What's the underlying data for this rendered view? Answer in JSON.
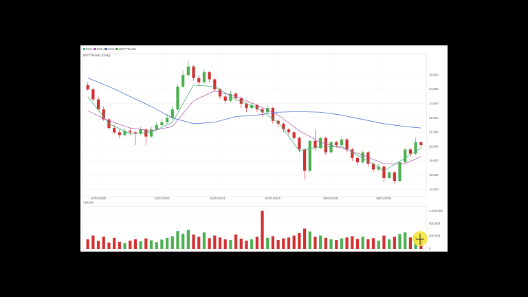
{
  "chart_data": {
    "type": "candlestick",
    "title": "NIFTYBANK (Daily)",
    "name": "NIFTYBANK",
    "up_color": "#4caf50",
    "down_color": "#d03030",
    "xlim": [
      -1,
      64
    ],
    "xticks": [
      {
        "value": 2,
        "label": "10/01/2020"
      },
      {
        "value": 14,
        "label": "12/01/2020"
      },
      {
        "value": 24.6,
        "label": "02/01/2021"
      },
      {
        "value": 35,
        "label": "04/01/2021"
      },
      {
        "value": 46,
        "label": "06/01/2021"
      },
      {
        "value": 56,
        "label": "08/01/2021"
      }
    ],
    "ylim": [
      16500,
      26500
    ],
    "yticks": [
      {
        "value": 17000,
        "label": "17,000"
      },
      {
        "value": 18000,
        "label": "18,000"
      },
      {
        "value": 19000,
        "label": "19,000"
      },
      {
        "value": 20000,
        "label": "20,000"
      },
      {
        "value": 21000,
        "label": "21,000"
      },
      {
        "value": 22000,
        "label": "22,000"
      },
      {
        "value": 23000,
        "label": "23,000"
      },
      {
        "value": 24000,
        "label": "24,000"
      },
      {
        "value": 25000,
        "label": "25,000"
      }
    ],
    "grid": true,
    "candles": [
      [
        24300,
        24500,
        23900,
        24000
      ],
      [
        24000,
        24100,
        23200,
        23300
      ],
      [
        23300,
        23500,
        22500,
        22600
      ],
      [
        22600,
        22800,
        21800,
        21900
      ],
      [
        21900,
        22000,
        21200,
        21300
      ],
      [
        21300,
        21500,
        20900,
        21000
      ],
      [
        21000,
        21200,
        20600,
        20800
      ],
      [
        20800,
        21300,
        20700,
        21100
      ],
      [
        21100,
        21300,
        20800,
        21000
      ],
      [
        21000,
        21100,
        20100,
        20900
      ],
      [
        20900,
        21400,
        20800,
        21200
      ],
      [
        21200,
        21300,
        20100,
        20700
      ],
      [
        20700,
        21400,
        20600,
        21200
      ],
      [
        21200,
        21700,
        21100,
        21500
      ],
      [
        21500,
        21900,
        21400,
        21700
      ],
      [
        21700,
        22300,
        21600,
        22000
      ],
      [
        22000,
        22800,
        21900,
        22600
      ],
      [
        22600,
        24400,
        22500,
        24200
      ],
      [
        24200,
        25300,
        24100,
        25000
      ],
      [
        25000,
        26000,
        24900,
        25600
      ],
      [
        25600,
        25700,
        24600,
        24800
      ],
      [
        24800,
        25000,
        24200,
        24500
      ],
      [
        24500,
        25400,
        24400,
        25200
      ],
      [
        25200,
        25300,
        24500,
        24700
      ],
      [
        24700,
        24800,
        23800,
        24000
      ],
      [
        24000,
        24100,
        23300,
        23500
      ],
      [
        23500,
        23700,
        23000,
        23200
      ],
      [
        23200,
        23900,
        23100,
        23700
      ],
      [
        23700,
        23800,
        23200,
        23400
      ],
      [
        23400,
        23500,
        22700,
        23000
      ],
      [
        23000,
        23100,
        22400,
        22700
      ],
      [
        22700,
        23100,
        22600,
        22900
      ],
      [
        22900,
        23000,
        22400,
        22600
      ],
      [
        22600,
        22700,
        22100,
        22400
      ],
      [
        22400,
        22900,
        22300,
        22700
      ],
      [
        22700,
        22800,
        21600,
        21800
      ],
      [
        21800,
        21900,
        21400,
        21600
      ],
      [
        21600,
        21700,
        21000,
        21200
      ],
      [
        21200,
        21300,
        20800,
        21000
      ],
      [
        21000,
        21100,
        20400,
        20600
      ],
      [
        20600,
        20700,
        19600,
        19800
      ],
      [
        19800,
        19900,
        17700,
        18300
      ],
      [
        18300,
        20500,
        18200,
        20400
      ],
      [
        20400,
        21200,
        19700,
        19900
      ],
      [
        19900,
        20700,
        19800,
        20600
      ],
      [
        20600,
        20700,
        19400,
        19600
      ],
      [
        19600,
        20400,
        19500,
        20300
      ],
      [
        20300,
        20400,
        19900,
        20100
      ],
      [
        20100,
        20700,
        20000,
        20500
      ],
      [
        20500,
        20600,
        19600,
        19800
      ],
      [
        19800,
        19900,
        19000,
        19200
      ],
      [
        19200,
        19300,
        18700,
        18900
      ],
      [
        18900,
        19700,
        18800,
        19600
      ],
      [
        19600,
        19700,
        18600,
        18800
      ],
      [
        18800,
        18900,
        18200,
        18400
      ],
      [
        18400,
        18800,
        18300,
        18600
      ],
      [
        18600,
        18700,
        17500,
        17800
      ],
      [
        17800,
        18300,
        17700,
        18200
      ],
      [
        18200,
        18300,
        17400,
        17600
      ],
      [
        17600,
        19000,
        17500,
        18900
      ],
      [
        18900,
        19900,
        18800,
        19800
      ],
      [
        19800,
        19900,
        19300,
        19500
      ],
      [
        19500,
        20600,
        19400,
        20300
      ],
      [
        20300,
        20400,
        19900,
        20100
      ]
    ],
    "ma_x": [
      0,
      4,
      8,
      12,
      16,
      20,
      24,
      28,
      32,
      36,
      40,
      44,
      48,
      52,
      56,
      60,
      63
    ],
    "series": [
      {
        "name": "EMA1",
        "color": "#3cb371",
        "values": [
          23500,
          21600,
          20900,
          21000,
          21700,
          24300,
          24200,
          23300,
          22700,
          21700,
          19700,
          20000,
          20000,
          19200,
          18300,
          19200,
          19900
        ]
      },
      {
        "name": "EMA2",
        "color": "#b05ab0",
        "values": [
          22500,
          21800,
          21300,
          21100,
          21400,
          23200,
          23900,
          23500,
          22900,
          22200,
          21100,
          20300,
          19900,
          19400,
          18800,
          18800,
          19300
        ]
      },
      {
        "name": "SMA3",
        "color": "#4f6fd0",
        "values": [
          24800,
          24200,
          23500,
          22800,
          22000,
          21600,
          21700,
          22100,
          22200,
          22400,
          22450,
          22400,
          22200,
          21900,
          21600,
          21400,
          21300
        ]
      }
    ],
    "volume_title": "Volume",
    "volume_ylim": [
      0,
      1300000
    ],
    "volume_yticks": [
      0,
      {
        "value": 400000,
        "label": "400,000"
      },
      {
        "value": 800000,
        "label": "800,000"
      },
      {
        "value": 1200000,
        "label": "1,200,000"
      }
    ],
    "volume": [
      300000,
      420000,
      250000,
      380000,
      200000,
      350000,
      220000,
      180000,
      260000,
      300000,
      240000,
      330000,
      270000,
      210000,
      290000,
      350000,
      400000,
      560000,
      480000,
      600000,
      450000,
      380000,
      520000,
      340000,
      420000,
      360000,
      300000,
      280000,
      450000,
      320000,
      260000,
      300000,
      380000,
      1200000,
      350000,
      400000,
      280000,
      330000,
      360000,
      420000,
      500000,
      640000,
      550000,
      380000,
      420000,
      350000,
      300000,
      280000,
      330000,
      360000,
      400000,
      310000,
      380000,
      300000,
      340000,
      260000,
      420000,
      300000,
      380000,
      470000,
      520000,
      360000,
      400000,
      300000
    ]
  }
}
